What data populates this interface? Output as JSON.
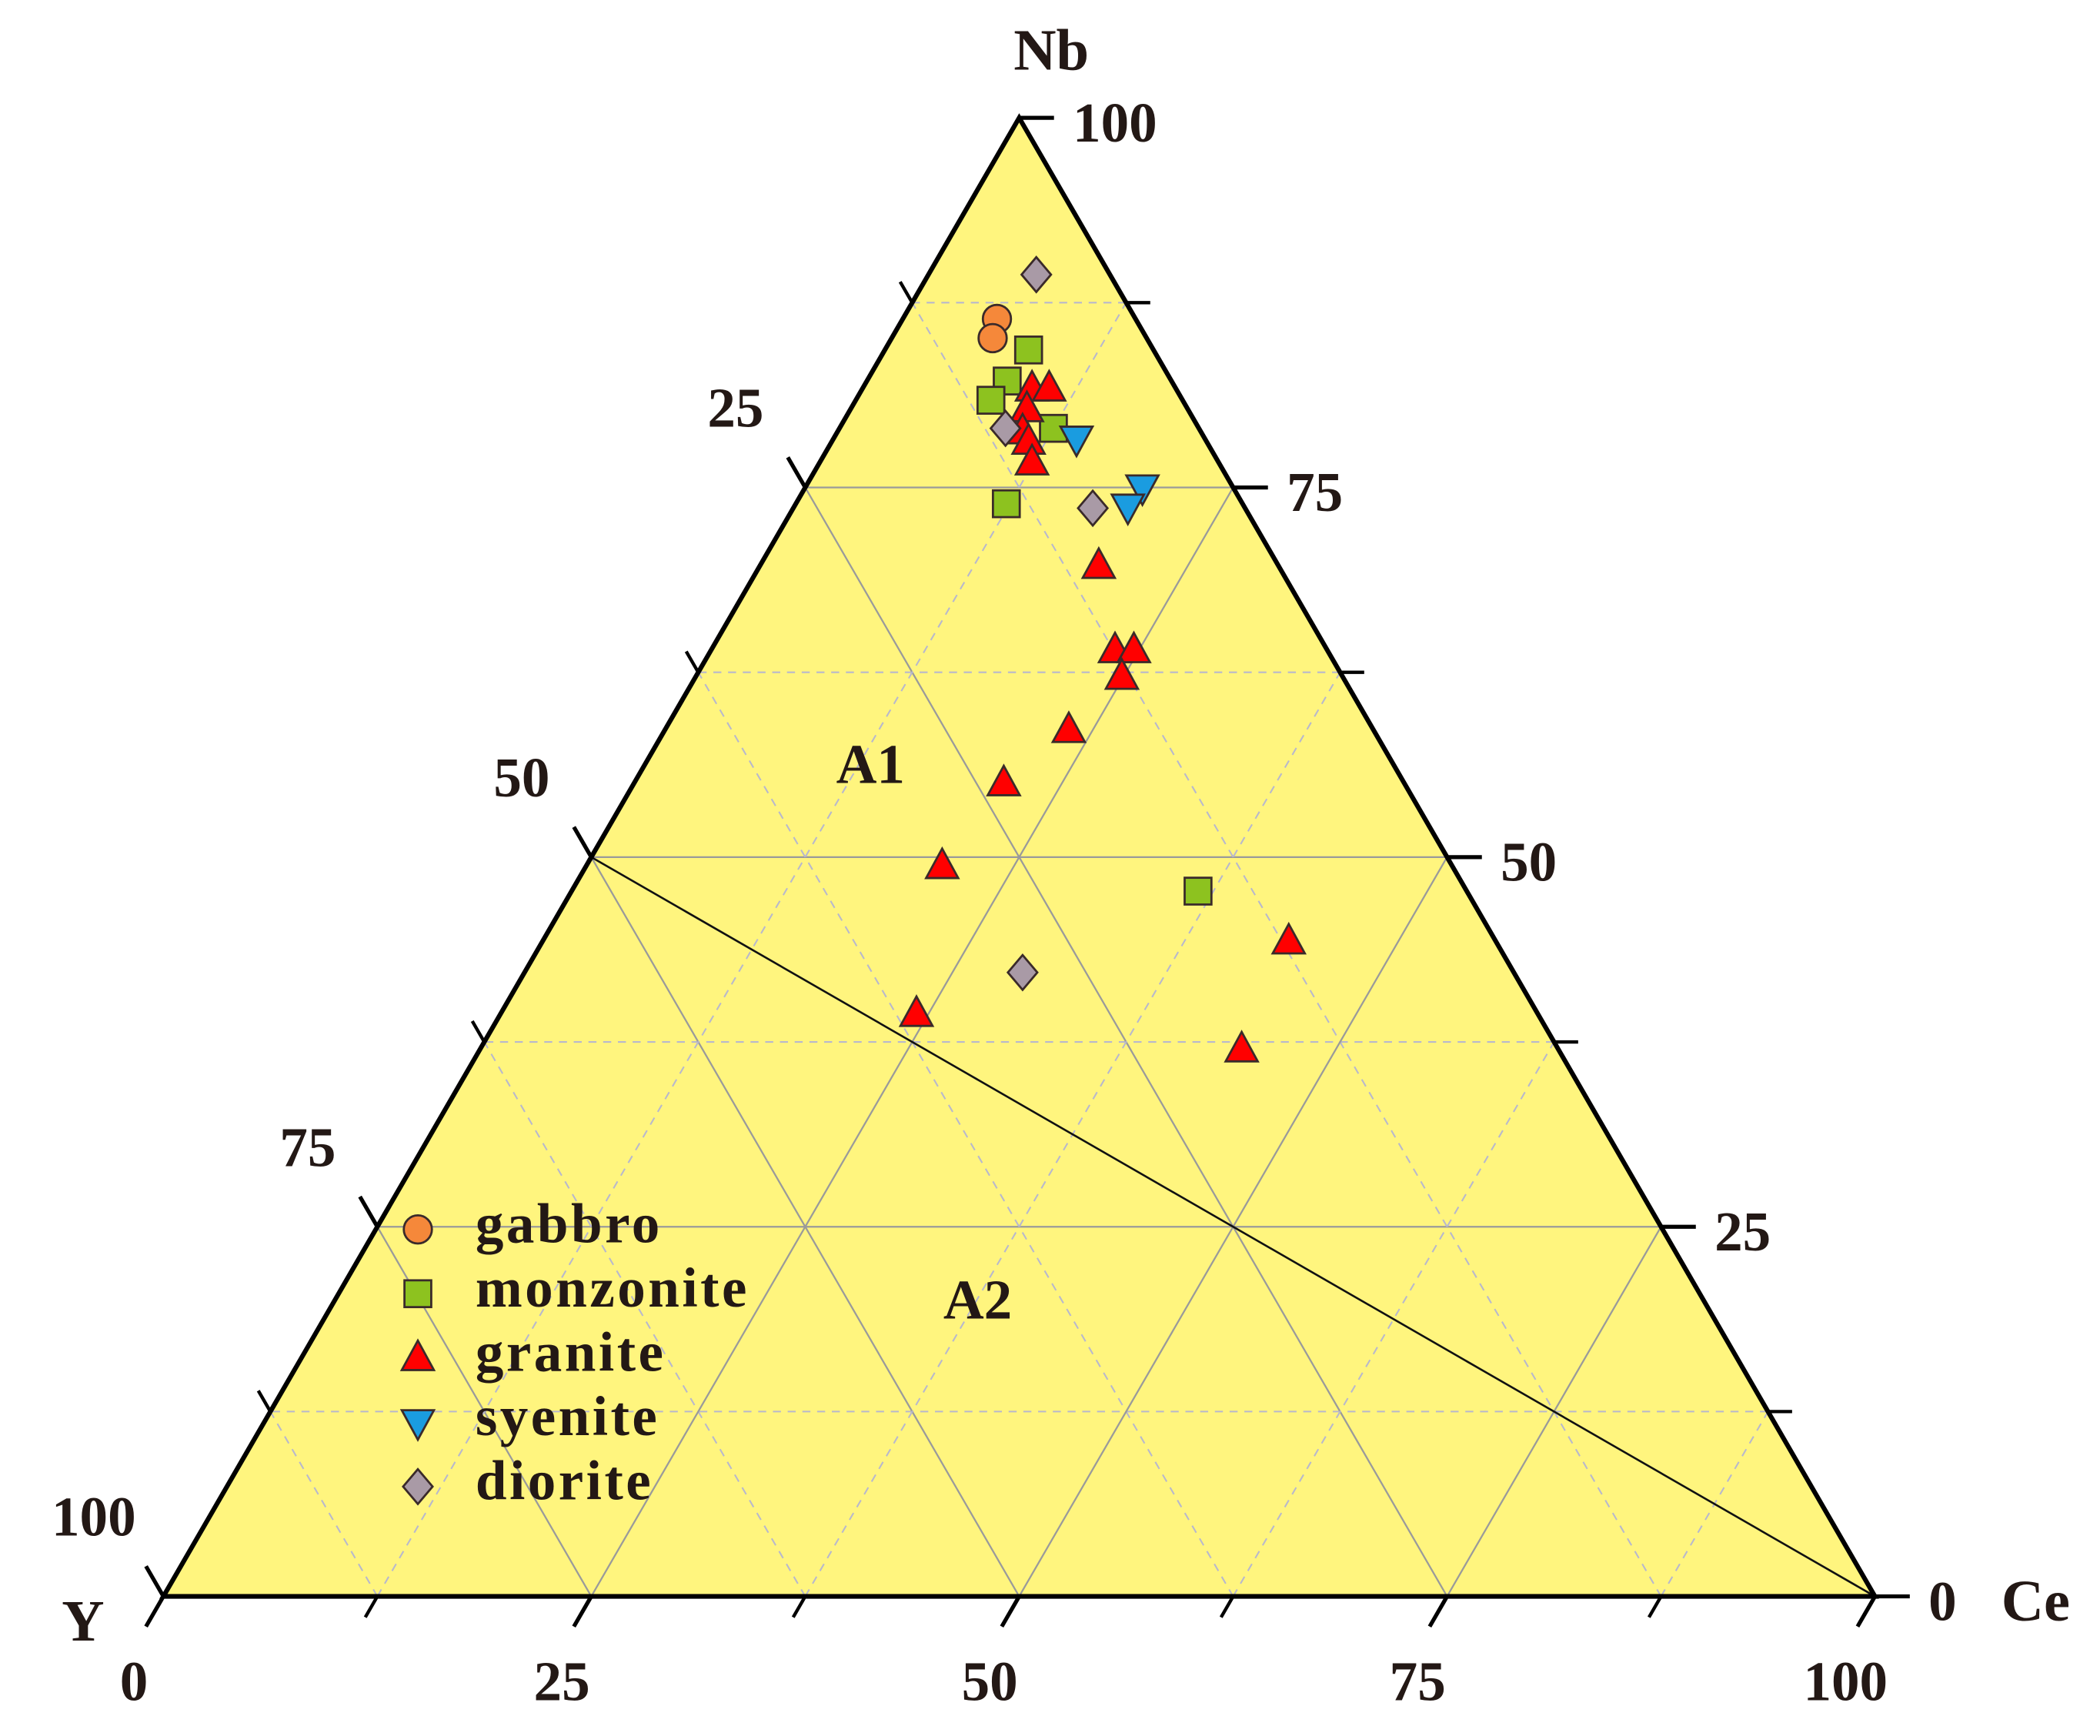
{
  "chart_data": {
    "type": "ternary",
    "lim": [
      0,
      100
    ],
    "axes": [
      {
        "name": "Nb",
        "ticks": [
          0,
          25,
          50,
          75,
          100
        ]
      },
      {
        "name": "Y",
        "ticks": [
          25,
          50,
          75,
          100
        ]
      },
      {
        "name": "Ce",
        "ticks": [
          0,
          25,
          50,
          75,
          100
        ]
      }
    ],
    "minor_ticks": [
      12.5,
      37.5,
      62.5,
      87.5
    ],
    "grid": true,
    "fill": "#fff57e",
    "boundary": [
      [
        50,
        50,
        0
      ],
      [
        0,
        0,
        100
      ]
    ],
    "regions": [
      "A1",
      "A2"
    ],
    "series": [
      {
        "name": "gabbro",
        "color": "#f5883a",
        "marker": "circle",
        "values": [
          [
            86.4,
            8.1,
            5.5
          ],
          [
            85.1,
            9.0,
            5.9
          ]
        ]
      },
      {
        "name": "monzonite",
        "color": "#8dc21f",
        "marker": "square",
        "values": [
          [
            84.3,
            7.3,
            8.4
          ],
          [
            82.2,
            9.6,
            8.2
          ],
          [
            80.9,
            11.2,
            7.9
          ],
          [
            79.0,
            8.5,
            12.5
          ],
          [
            73.9,
            13.8,
            12.3
          ],
          [
            47.7,
            15.7,
            36.6
          ]
        ]
      },
      {
        "name": "granite",
        "color": "#ff0000",
        "marker": "triangle-up",
        "values": [
          [
            81.7,
            8.4,
            9.9
          ],
          [
            81.7,
            7.4,
            10.9
          ],
          [
            80.3,
            9.4,
            10.3
          ],
          [
            78.8,
            10.4,
            10.8
          ],
          [
            78.1,
            10.4,
            11.5
          ],
          [
            76.7,
            10.9,
            12.4
          ],
          [
            69.7,
            10.5,
            19.8
          ],
          [
            64.0,
            12.4,
            23.6
          ],
          [
            64.0,
            11.3,
            24.7
          ],
          [
            62.2,
            12.9,
            24.9
          ],
          [
            58.6,
            17.8,
            23.6
          ],
          [
            55.0,
            23.4,
            21.6
          ],
          [
            49.4,
            29.8,
            20.8
          ],
          [
            44.3,
            12.1,
            43.6
          ],
          [
            39.4,
            36.3,
            24.3
          ],
          [
            37.0,
            18.5,
            44.5
          ]
        ]
      },
      {
        "name": "syenite",
        "color": "#1a9ce0",
        "marker": "triangle-down",
        "values": [
          [
            78.3,
            7.5,
            14.2
          ],
          [
            75.0,
            5.3,
            19.7
          ],
          [
            73.7,
            6.8,
            19.5
          ]
        ]
      },
      {
        "name": "diorite",
        "color": "#a99aa6",
        "marker": "diamond",
        "values": [
          [
            89.4,
            4.3,
            6.3
          ],
          [
            79.0,
            11.3,
            9.7
          ],
          [
            73.6,
            8.9,
            17.5
          ],
          [
            42.2,
            28.7,
            29.1
          ]
        ]
      }
    ]
  }
}
